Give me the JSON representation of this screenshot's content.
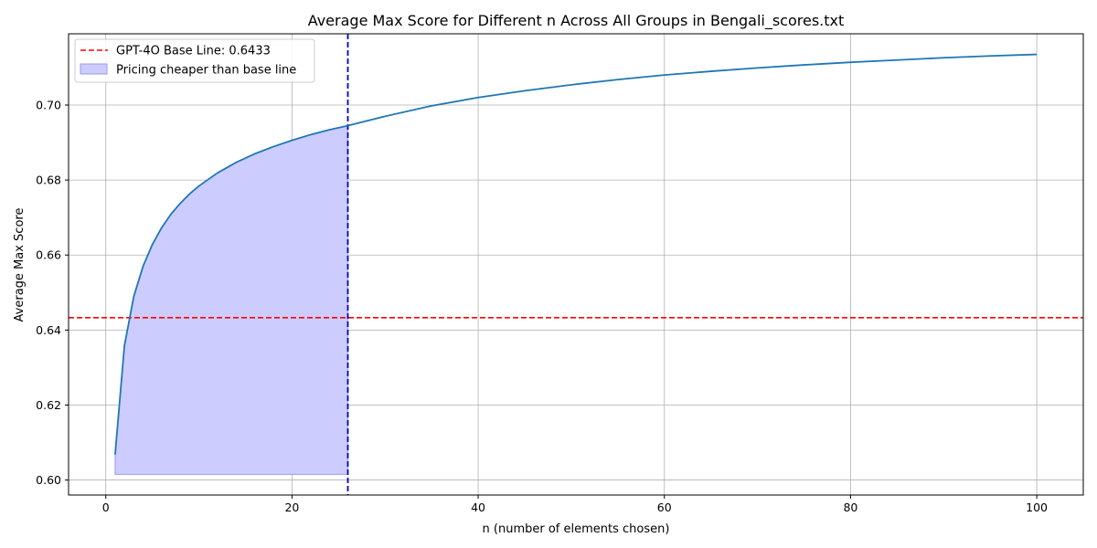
{
  "chart_data": {
    "type": "line",
    "title": "Average Max Score for Different n Across All Groups in Bengali_scores.txt",
    "xlabel": "n (number of elements chosen)",
    "ylabel": "Average Max Score",
    "xlim": [
      -4,
      105
    ],
    "ylim": [
      0.596,
      0.719
    ],
    "xticks": [
      0,
      20,
      40,
      60,
      80,
      100
    ],
    "xtick_labels": [
      "0",
      "20",
      "40",
      "60",
      "80",
      "100"
    ],
    "yticks": [
      0.6,
      0.62,
      0.64,
      0.66,
      0.68,
      0.7
    ],
    "ytick_labels": [
      "0.60",
      "0.62",
      "0.64",
      "0.66",
      "0.68",
      "0.70"
    ],
    "grid": true,
    "legend_position": "top-left",
    "series": [
      {
        "kind": "line",
        "color": "#1f77b4",
        "x": [
          1,
          2,
          3,
          4,
          5,
          6,
          7,
          8,
          9,
          10,
          12,
          14,
          16,
          18,
          20,
          22,
          24,
          26,
          30,
          35,
          40,
          45,
          50,
          55,
          60,
          65,
          70,
          75,
          80,
          85,
          90,
          95,
          100
        ],
        "y": [
          0.6068,
          0.6358,
          0.6489,
          0.657,
          0.6628,
          0.6673,
          0.6709,
          0.6738,
          0.6763,
          0.6784,
          0.6819,
          0.6847,
          0.687,
          0.6889,
          0.6906,
          0.6921,
          0.6934,
          0.6945,
          0.697,
          0.6998,
          0.702,
          0.7038,
          0.7054,
          0.7068,
          0.708,
          0.709,
          0.7099,
          0.7107,
          0.7114,
          0.712,
          0.7126,
          0.7131,
          0.7135
        ]
      }
    ],
    "baseline": {
      "name": "GPT-4O Base Line: 0.6433",
      "value": 0.6433,
      "color": "#ff0000",
      "style": "dashed"
    },
    "vline": {
      "x": 26,
      "color": "#0000cc",
      "style": "dashed"
    },
    "fill": {
      "name": "Pricing cheaper than base line",
      "x_range": [
        1,
        26
      ],
      "y_bottom": 0.6015,
      "color": "#ccccff",
      "edge_color": "#9999ee"
    }
  }
}
